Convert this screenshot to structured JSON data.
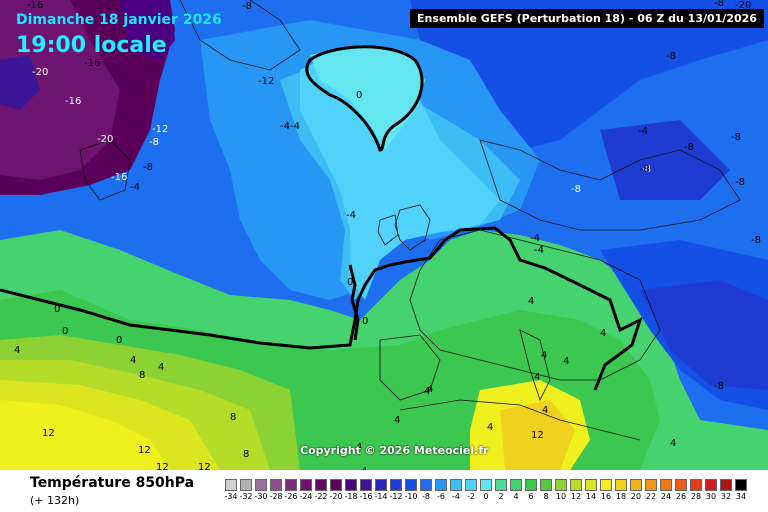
{
  "header": {
    "date_line": "Dimanche 18 janvier 2026",
    "time_line": "19:00 locale",
    "run_info": "Ensemble GEFS  (Perturbation 18)  -  06 Z du 13/01/2026"
  },
  "footer": {
    "variable": "Température 850hPa",
    "lead_time": "(+ 132h)",
    "copyright": "Copyright © 2026 Meteociel.fr"
  },
  "scale": {
    "values": [
      "-34",
      "-32",
      "-30",
      "-28",
      "-26",
      "-24",
      "-22",
      "-20",
      "-18",
      "-16",
      "-14",
      "-12",
      "-10",
      "-8",
      "-6",
      "-4",
      "-2",
      "0",
      "2",
      "4",
      "6",
      "8",
      "10",
      "12",
      "14",
      "16",
      "18",
      "20",
      "22",
      "24",
      "26",
      "28",
      "30",
      "32",
      "34"
    ],
    "colors": [
      "#d0d0d0",
      "#b4b4b4",
      "#9a6f9a",
      "#8c4f8c",
      "#7a2a7a",
      "#6e1470",
      "#640a64",
      "#5a005a",
      "#4b0082",
      "#3c1496",
      "#2828b4",
      "#1e3cd2",
      "#1450e6",
      "#1e6ef0",
      "#2896f5",
      "#3cbef5",
      "#50d2fa",
      "#64e6f0",
      "#50dc96",
      "#46d26e",
      "#3cc850",
      "#5ac83c",
      "#8cd232",
      "#b4dc28",
      "#dce61e",
      "#f0f01e",
      "#f0d21e",
      "#f0b41e",
      "#f0961e",
      "#f07814",
      "#f05a14",
      "#e63c14",
      "#d21e1e",
      "#aa1414",
      "#000000"
    ]
  },
  "map_values": [
    "-16",
    "-16",
    "-20",
    "-16",
    "-20",
    "-12",
    "-12",
    "-8",
    "-16",
    "-4",
    "0",
    "-4-4",
    "-4",
    "-8",
    "0",
    "0",
    "0",
    "0",
    "4",
    "4",
    "0",
    "4",
    "8",
    "4",
    "12",
    "12",
    "12",
    "8",
    "12",
    "8",
    "4",
    "4",
    "4",
    "4",
    "4",
    "12",
    "4",
    "4",
    "4",
    "4",
    "4",
    "4",
    "4",
    "-8",
    "-8",
    "-8",
    "-8",
    "-4",
    "-8",
    "-8",
    "-8",
    "-8",
    "-4",
    "-4",
    "-8",
    "-8",
    "-20",
    "-8"
  ],
  "colors": {
    "title_cyan": "#22f0ff",
    "run_bg": "#000000"
  }
}
